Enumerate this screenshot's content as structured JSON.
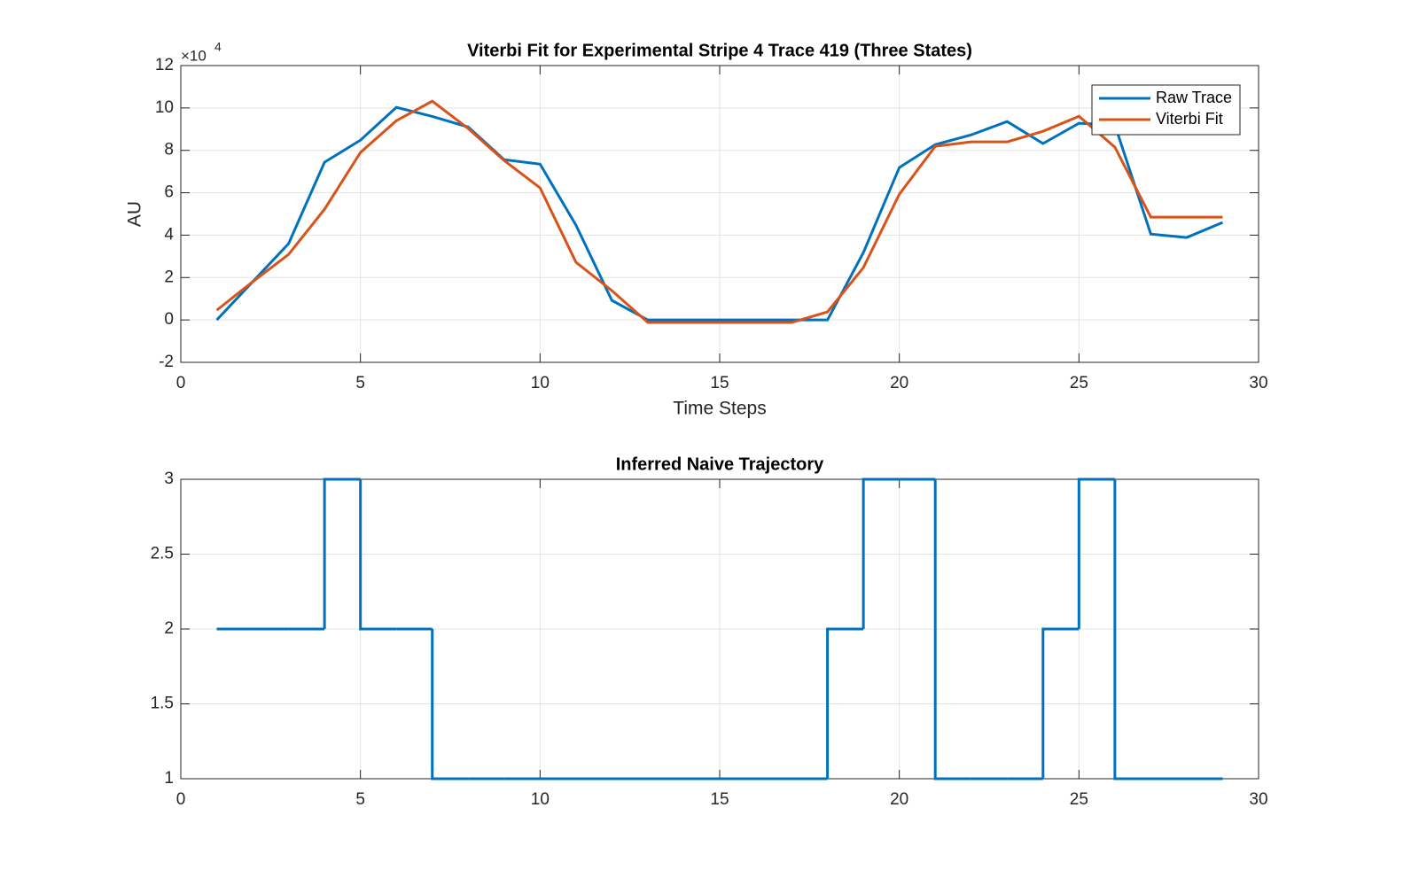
{
  "chart_data": [
    {
      "type": "line",
      "title": "Viterbi Fit for Experimental Stripe 4 Trace 419 (Three States)",
      "x_label": "Time Steps",
      "y_label": "AU",
      "y_multiplier": "×10",
      "y_exponent": "4",
      "x": [
        1,
        2,
        3,
        4,
        5,
        6,
        7,
        8,
        9,
        10,
        11,
        12,
        13,
        14,
        15,
        16,
        17,
        18,
        19,
        20,
        21,
        22,
        23,
        24,
        25,
        26,
        27,
        28,
        29
      ],
      "series": [
        {
          "name": "Raw Trace",
          "color": "#0072BD",
          "values": [
            0,
            1.8,
            3.6,
            7.44,
            8.48,
            10.03,
            9.6,
            9.1,
            7.56,
            7.35,
            4.47,
            0.92,
            0,
            0,
            0,
            0,
            0,
            0,
            3.18,
            7.19,
            8.27,
            8.73,
            9.36,
            8.32,
            9.28,
            9.2,
            4.05,
            3.89,
            4.6
          ]
        },
        {
          "name": "Viterbi Fit",
          "color": "#D95319",
          "values": [
            0.46,
            1.8,
            3.09,
            5.22,
            7.9,
            9.4,
            10.32,
            9.03,
            7.52,
            6.23,
            2.72,
            1.38,
            -0.12,
            -0.12,
            -0.12,
            -0.12,
            -0.12,
            0.38,
            2.47,
            5.93,
            8.19,
            8.4,
            8.4,
            8.9,
            9.61,
            8.15,
            4.85,
            4.85,
            4.85
          ]
        }
      ],
      "xlim": [
        0,
        30
      ],
      "xticks": [
        0,
        5,
        10,
        15,
        20,
        25,
        30
      ],
      "ylim": [
        -2,
        12
      ],
      "yticks": [
        -2,
        0,
        2,
        4,
        6,
        8,
        10,
        12
      ],
      "grid": true,
      "legend": "northeast"
    },
    {
      "type": "stairs",
      "title": "Inferred Naive Trajectory",
      "x": [
        1,
        2,
        3,
        4,
        5,
        6,
        7,
        8,
        9,
        10,
        11,
        12,
        13,
        14,
        15,
        16,
        17,
        18,
        19,
        20,
        21,
        22,
        23,
        24,
        25,
        26,
        27,
        28,
        29
      ],
      "series": [
        {
          "color": "#0072BD",
          "values": [
            2,
            2,
            2,
            3,
            2,
            2,
            1,
            1,
            1,
            1,
            1,
            1,
            1,
            1,
            1,
            1,
            1,
            2,
            3,
            3,
            1,
            1,
            1,
            2,
            3,
            1,
            1,
            1,
            1
          ]
        }
      ],
      "xlim": [
        0,
        30
      ],
      "xticks": [
        0,
        5,
        10,
        15,
        20,
        25,
        30
      ],
      "ylim": [
        1,
        3
      ],
      "yticks": [
        1,
        1.5,
        2,
        2.5,
        3
      ],
      "grid": true
    }
  ]
}
